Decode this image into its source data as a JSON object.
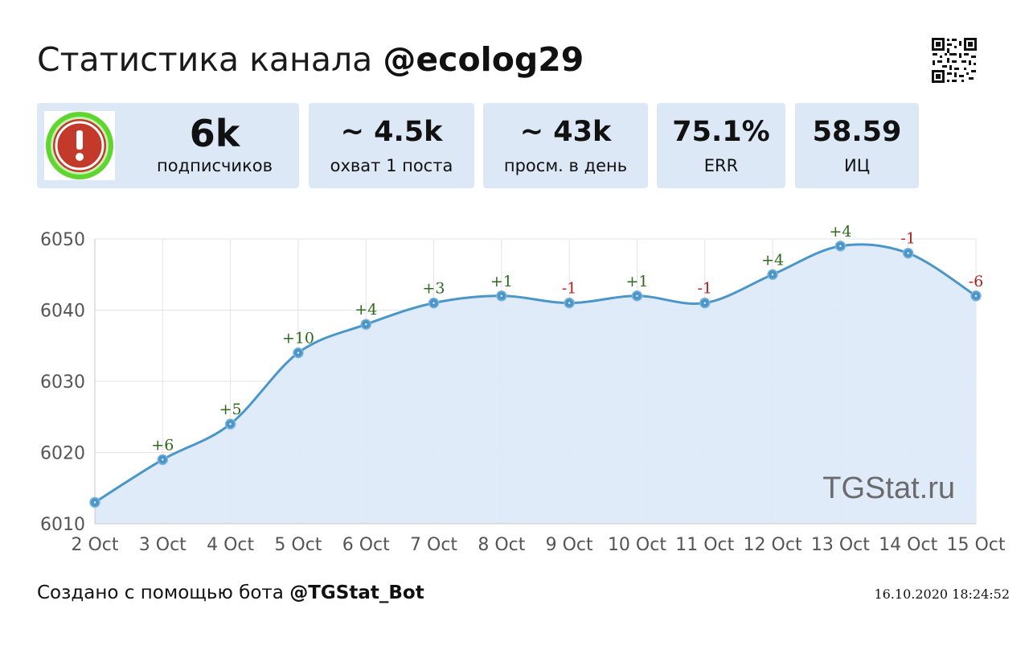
{
  "header": {
    "title_prefix": "Статистика канала",
    "channel": "@ecolog29"
  },
  "stats": [
    {
      "value": "6k",
      "label": "подписчиков"
    },
    {
      "value": "~ 4.5k",
      "label": "охват 1 поста"
    },
    {
      "value": "~ 43k",
      "label": "просм. в день"
    },
    {
      "value": "75.1%",
      "label": "ERR"
    },
    {
      "value": "58.59",
      "label": "ИЦ"
    }
  ],
  "icons": {
    "avatar": "warning-exclamation-icon",
    "qr": "qr-code-icon"
  },
  "colors": {
    "line": "#4a96c8",
    "fill": "#dde9f9",
    "positive": "#2d6a1e",
    "negative": "#b01e1e",
    "card_bg": "#dde8f7"
  },
  "chart_data": {
    "type": "area",
    "categories": [
      "2 Oct",
      "3 Oct",
      "4 Oct",
      "5 Oct",
      "6 Oct",
      "7 Oct",
      "8 Oct",
      "9 Oct",
      "10 Oct",
      "11 Oct",
      "12 Oct",
      "13 Oct",
      "14 Oct",
      "15 Oct"
    ],
    "values": [
      6013,
      6019,
      6024,
      6034,
      6038,
      6041,
      6042,
      6041,
      6042,
      6041,
      6045,
      6049,
      6048,
      6042
    ],
    "annotations": [
      "",
      "+6",
      "+5",
      "+10",
      "+4",
      "+3",
      "+1",
      "-1",
      "+1",
      "-1",
      "+4",
      "+4",
      "-1",
      "-6"
    ],
    "yticks": [
      6010,
      6020,
      6030,
      6040,
      6050
    ],
    "ylim": [
      6010,
      6050
    ],
    "grid": true,
    "watermark": "TGStat.ru"
  },
  "footer": {
    "created_prefix": "Создано с помощью бота",
    "bot": "@TGStat_Bot",
    "timestamp": "16.10.2020 18:24:52"
  }
}
